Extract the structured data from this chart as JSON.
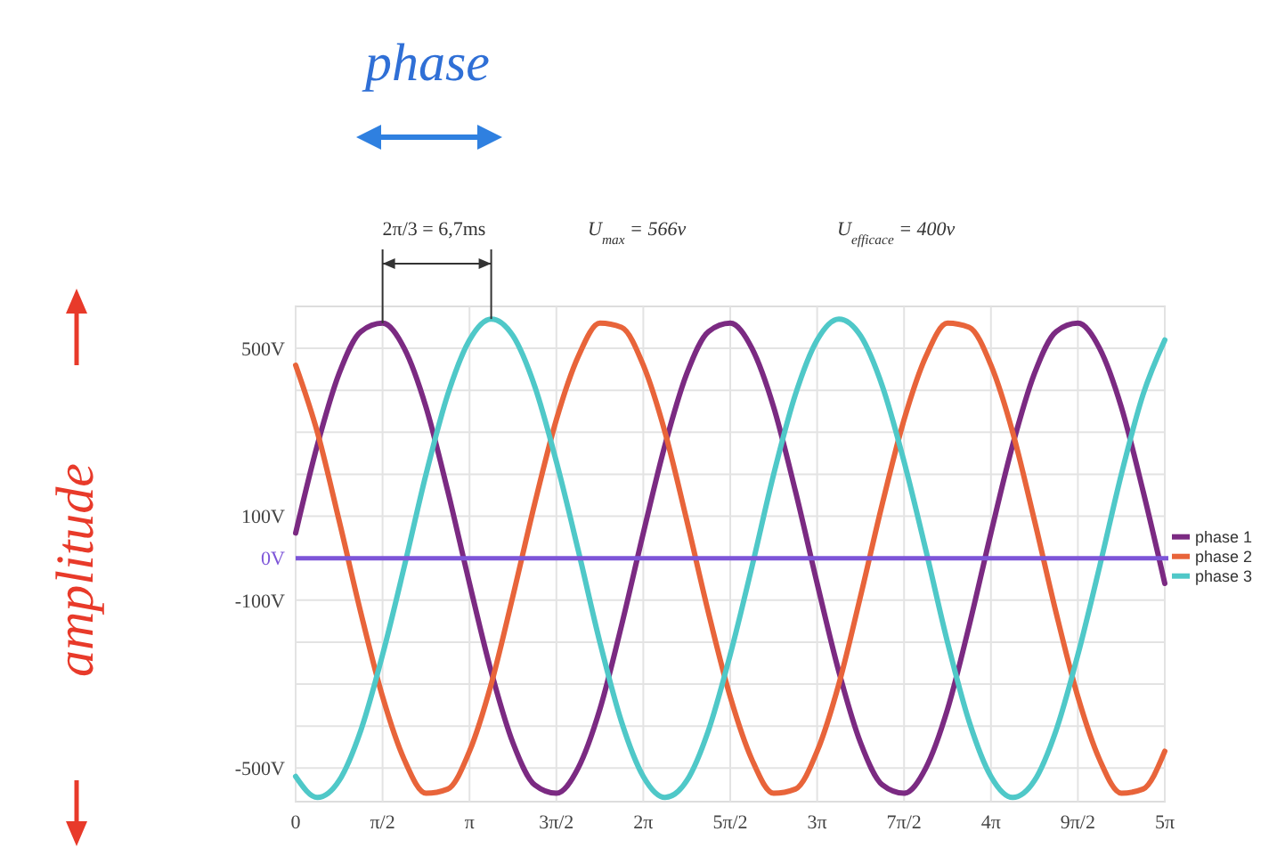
{
  "chart_data": {
    "type": "line",
    "annotations": [
      "phase",
      "amplitude",
      {
        "text": "2π/3 = 6,7ms",
        "x": 1.571,
        "y": 560
      },
      "U$_{max}$ = 566v",
      "U$_{efficace}$ = 400v"
    ],
    "x": [
      0,
      0.393,
      0.785,
      1.178,
      1.571,
      1.963,
      2.356,
      2.749,
      3.142,
      3.534,
      3.927,
      4.32,
      4.712,
      5.105,
      5.498,
      5.89,
      6.283,
      6.676,
      7.069,
      7.461,
      7.854,
      8.247,
      8.639,
      9.032,
      9.425,
      9.817,
      10.21,
      10.603,
      10.996,
      11.388,
      11.781,
      12.174,
      12.566,
      12.959,
      13.352,
      13.744,
      14.137,
      14.53,
      14.923,
      15.315,
      15.708
    ],
    "series": [
      {
        "name": "phase 1",
        "color": "#7b2a82",
        "values": [
          60,
          270,
          440,
          540,
          560,
          500,
          360,
          160,
          -60,
          -270,
          -440,
          -540,
          -560,
          -500,
          -360,
          -160,
          60,
          270,
          440,
          540,
          560,
          500,
          360,
          160,
          -60,
          -270,
          -440,
          -540,
          -560,
          -500,
          -360,
          -160,
          60,
          270,
          440,
          540,
          560,
          500,
          360,
          160,
          -60
        ]
      },
      {
        "name": "phase 2",
        "color": "#e8643a",
        "values": [
          460,
          300,
          90,
          -130,
          -330,
          -480,
          -560,
          -550,
          -460,
          -300,
          -90,
          130,
          330,
          480,
          560,
          550,
          460,
          300,
          90,
          -130,
          -330,
          -480,
          -560,
          -550,
          -460,
          -300,
          -90,
          130,
          330,
          480,
          560,
          550,
          460,
          300,
          90,
          -130,
          -330,
          -480,
          -560,
          -550,
          -460
        ]
      },
      {
        "name": "phase 3",
        "color": "#4fc8c8",
        "values": [
          -520,
          -570,
          -530,
          -410,
          -230,
          -20,
          200,
          390,
          520,
          570,
          530,
          410,
          230,
          20,
          -200,
          -390,
          -520,
          -570,
          -530,
          -410,
          -230,
          -20,
          200,
          390,
          520,
          570,
          530,
          410,
          230,
          20,
          -200,
          -390,
          -520,
          -570,
          -530,
          -410,
          -230,
          -20,
          200,
          390,
          520
        ]
      }
    ],
    "xlim": [
      0,
      15.708
    ],
    "xticks": [
      0,
      {
        "value": 1.571,
        "label": "π/2"
      },
      {
        "value": 3.142,
        "label": "π"
      },
      {
        "value": 4.712,
        "label": "3π/2"
      },
      {
        "value": 6.283,
        "label": "2π"
      },
      {
        "value": 7.854,
        "label": "5π/2"
      },
      {
        "value": 9.425,
        "label": "3π"
      },
      {
        "value": 10.996,
        "label": "7π/2"
      },
      {
        "value": 12.566,
        "label": "4π"
      },
      {
        "value": 14.137,
        "label": "9π/2"
      },
      {
        "value": 15.708,
        "label": "5π"
      }
    ],
    "ylim": [
      -580,
      600
    ],
    "yticks": [
      {
        "value": -500,
        "label": "-500V"
      },
      {
        "value": -400,
        "label": null
      },
      {
        "value": -300,
        "label": null
      },
      {
        "value": -200,
        "label": null
      },
      {
        "value": -100,
        "label": "-100V"
      },
      {
        "value": 0,
        "label": "0V"
      },
      {
        "value": 100,
        "label": "100V"
      },
      {
        "value": 200,
        "label": null
      },
      {
        "value": 300,
        "label": null
      },
      {
        "value": 400,
        "label": null
      },
      {
        "value": 500,
        "label": "500V"
      }
    ],
    "ref_lines": [
      {
        "axis": "y",
        "value": 0,
        "color": "#7d55d8"
      }
    ],
    "grid": true,
    "legend": "right",
    "line_style": "solid",
    "marker": "none"
  }
}
